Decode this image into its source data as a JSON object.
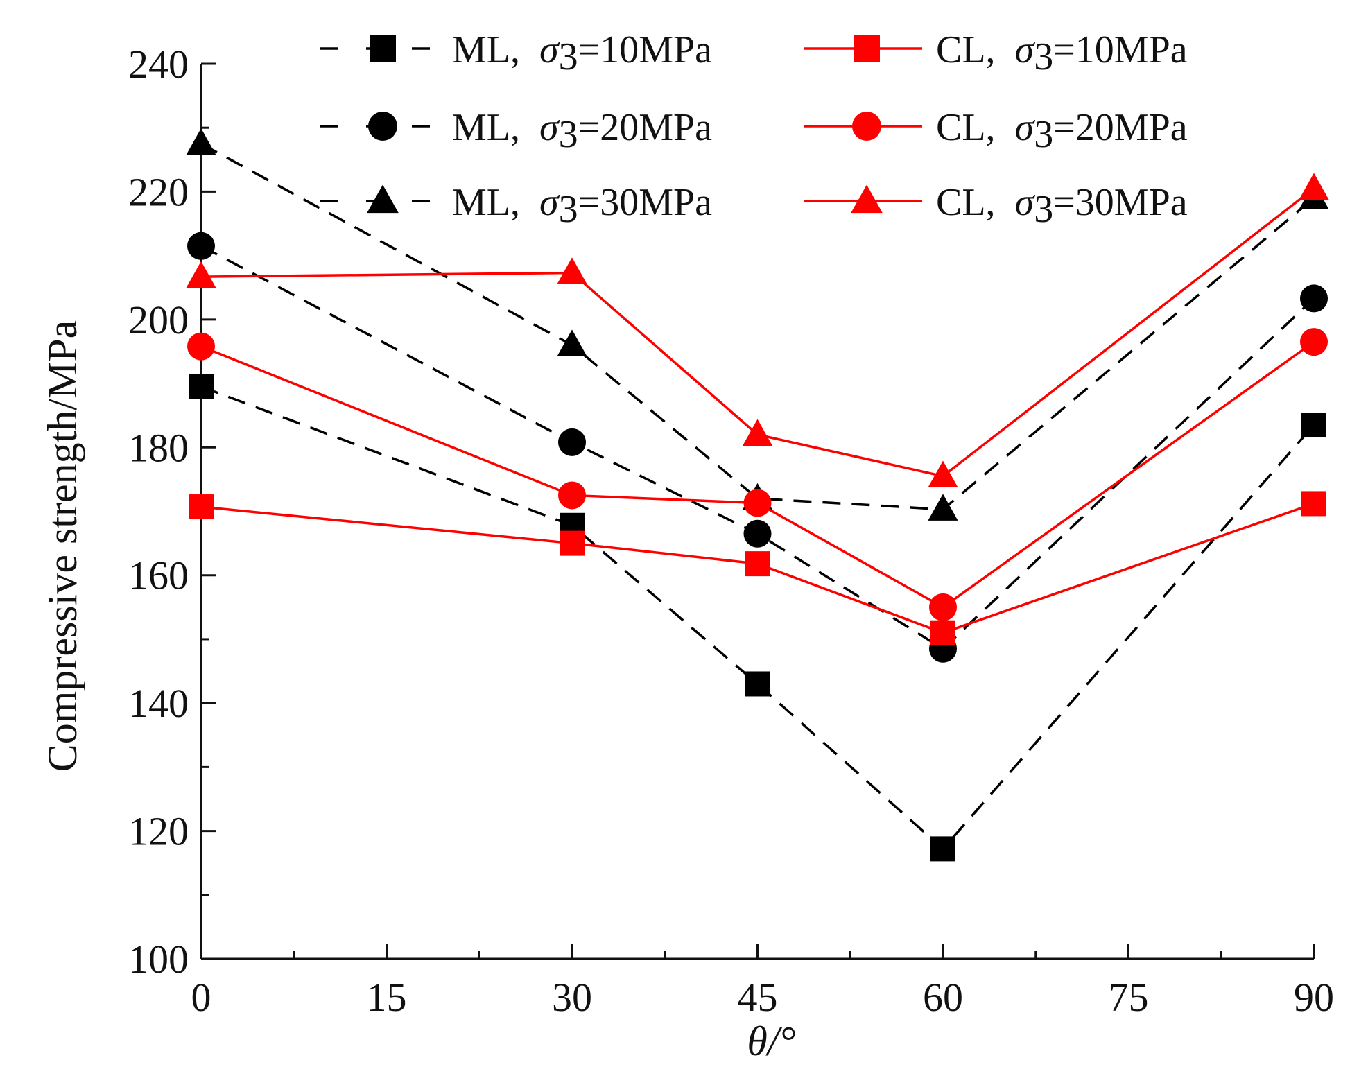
{
  "chart_data": {
    "type": "line",
    "title": "",
    "xlabel": "θ/°",
    "ylabel": "Compressive strength/MPa",
    "xlim": [
      0,
      90
    ],
    "ylim": [
      100,
      240
    ],
    "x_ticks": [
      0,
      15,
      30,
      45,
      60,
      75,
      90
    ],
    "y_ticks": [
      100,
      120,
      140,
      160,
      180,
      200,
      220,
      240
    ],
    "grid": false,
    "legend_position": "top",
    "x": [
      0,
      30,
      45,
      60,
      90
    ],
    "series": [
      {
        "name": "ML,  σ3=10MPa",
        "legend_prefix": "ML,  ",
        "sigma_sub": "3",
        "legend_suffix": "=10MPa",
        "values": [
          189.5,
          167.8,
          143.0,
          117.2,
          183.5
        ],
        "color": "#000000",
        "line": "dashed",
        "marker": "square"
      },
      {
        "name": "ML,  σ3=20MPa",
        "legend_prefix": "ML,  ",
        "sigma_sub": "3",
        "legend_suffix": "=20MPa",
        "values": [
          211.5,
          180.8,
          166.5,
          148.5,
          203.3
        ],
        "color": "#000000",
        "line": "dashed",
        "marker": "circle"
      },
      {
        "name": "ML,  σ3=30MPa",
        "legend_prefix": "ML,  ",
        "sigma_sub": "3",
        "legend_suffix": "=30MPa",
        "values": [
          227.5,
          196.0,
          172.0,
          170.3,
          219.0
        ],
        "color": "#000000",
        "line": "dashed",
        "marker": "triangle"
      },
      {
        "name": "CL,  σ3=10MPa",
        "legend_prefix": "CL,  ",
        "sigma_sub": "3",
        "legend_suffix": "=10MPa",
        "values": [
          170.7,
          165.0,
          161.8,
          151.0,
          171.2
        ],
        "color": "#ff0000",
        "line": "solid",
        "marker": "square"
      },
      {
        "name": "CL,  σ3=20MPa",
        "legend_prefix": "CL,  ",
        "sigma_sub": "3",
        "legend_suffix": "=20MPa",
        "values": [
          195.8,
          172.5,
          171.3,
          155.0,
          196.5
        ],
        "color": "#ff0000",
        "line": "solid",
        "marker": "circle"
      },
      {
        "name": "CL,  σ3=30MPa",
        "legend_prefix": "CL,  ",
        "sigma_sub": "3",
        "legend_suffix": "=30MPa",
        "values": [
          206.7,
          207.3,
          182.0,
          175.5,
          220.5
        ],
        "color": "#ff0000",
        "line": "solid",
        "marker": "triangle"
      }
    ]
  }
}
